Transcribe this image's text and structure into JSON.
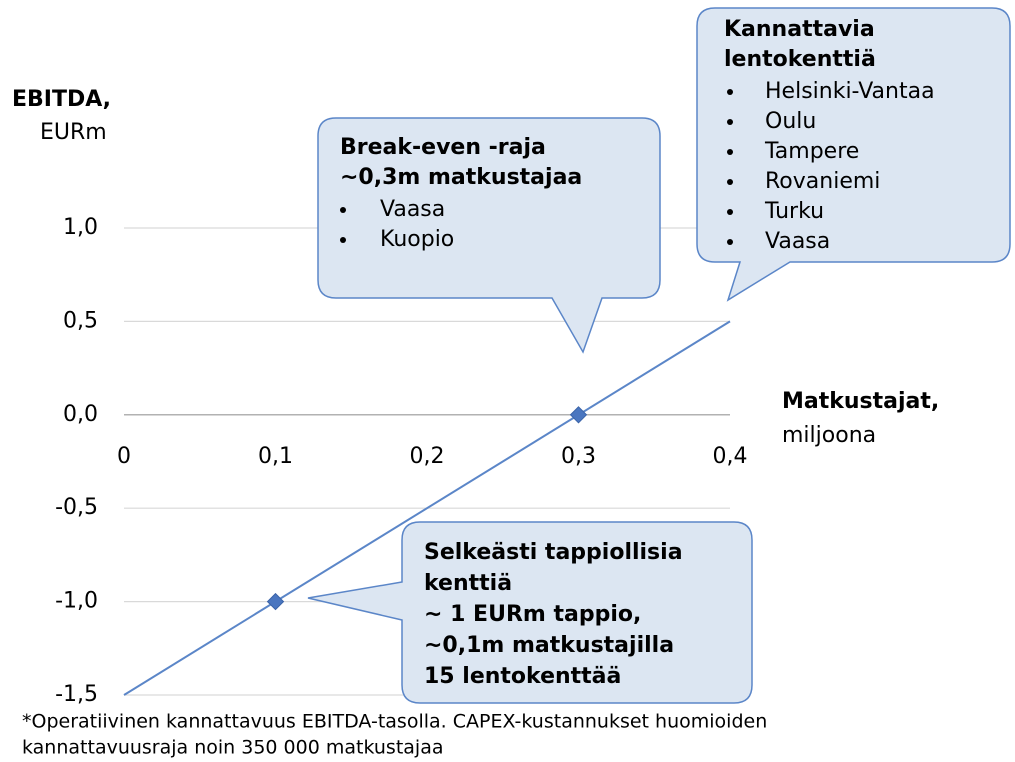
{
  "chart_data": {
    "type": "line",
    "y_label": {
      "title": "EBITDA,",
      "unit": "EURm"
    },
    "x_label": {
      "title": "Matkustajat,",
      "unit": "miljoona"
    },
    "xlim": [
      0,
      0.4
    ],
    "ylim": [
      -1.5,
      1.0
    ],
    "xticks": [
      0,
      {
        "value": 0.1,
        "label": "0,1"
      },
      {
        "value": 0.2,
        "label": "0,2"
      },
      {
        "value": 0.3,
        "label": "0,3"
      },
      {
        "value": 0.4,
        "label": "0,4"
      }
    ],
    "yticks": [
      {
        "value": 1.0,
        "label": "1,0"
      },
      {
        "value": 0.5,
        "label": "0,5"
      },
      {
        "value": 0.0,
        "label": "0,0"
      },
      {
        "value": -0.5,
        "label": "-0,5"
      },
      {
        "value": -1.0,
        "label": "-1,0"
      },
      {
        "value": -1.5,
        "label": "-1,5"
      }
    ],
    "grid": true,
    "color": "#5b86c8",
    "line": {
      "x": [
        0,
        0.4
      ],
      "values": [
        -1.5,
        0.5
      ]
    },
    "points": {
      "x": [
        0.1,
        0.3
      ],
      "values": [
        -1.0,
        0.0
      ]
    },
    "annotations": [
      {
        "title": [
          "Break-even -raja",
          "~0,3m matkustajaa"
        ],
        "bullets": [
          "Vaasa",
          "Kuopio"
        ]
      },
      {
        "title": [
          "Kannattavia",
          "lentokenttiä"
        ],
        "bullets": [
          "Helsinki-Vantaa",
          "Oulu",
          "Tampere",
          "Rovaniemi",
          "Turku",
          "Vaasa"
        ]
      },
      {
        "title": [
          "Selkeästi tappiollisia",
          "kenttiä",
          "~ 1 EURm tappio,",
          "~0,1m matkustajilla",
          "15 lentokenttää"
        ],
        "bullets": []
      }
    ],
    "footnote": [
      "*Operatiivinen kannattavuus EBITDA-tasolla. CAPEX-kustannukset huomioiden",
      "kannattavuusraja noin 350 000 matkustajaa"
    ]
  }
}
